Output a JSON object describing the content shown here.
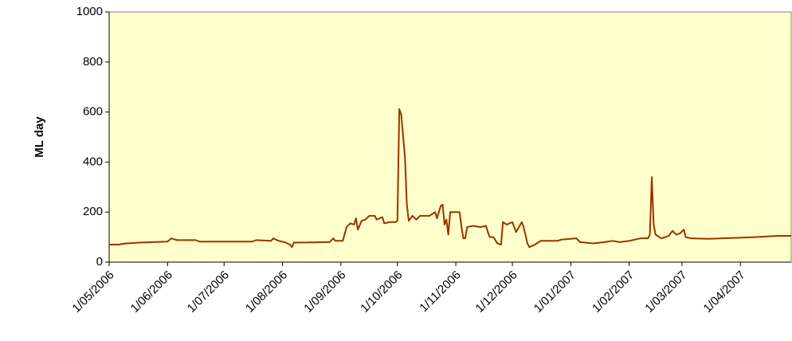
{
  "chart_data": {
    "type": "line",
    "y_label": "ML day",
    "ylim": [
      0,
      1000
    ],
    "yticks": [
      0,
      200,
      400,
      600,
      800,
      1000
    ],
    "xlim": [
      "1/05/2006",
      "28/04/2007"
    ],
    "xticks": [
      "1/05/2006",
      "1/06/2006",
      "1/07/2006",
      "1/08/2006",
      "1/09/2006",
      "1/10/2006",
      "1/11/2006",
      "1/12/2006",
      "1/01/2007",
      "1/02/2007",
      "1/03/2007",
      "1/04/2007"
    ],
    "plot_background": "#ffffcc",
    "x": [
      "1/05/2006",
      "6/05/2006",
      "9/05/2006",
      "17/05/2006",
      "1/06/2006",
      "3/06/2006",
      "6/06/2006",
      "16/06/2006",
      "18/06/2006",
      "16/07/2006",
      "18/07/2006",
      "26/07/2006",
      "27/07/2006",
      "30/07/2006",
      "2/08/2006",
      "5/08/2006",
      "6/08/2006",
      "7/08/2006",
      "26/08/2006",
      "28/08/2006",
      "29/08/2006",
      "2/09/2006",
      "4/09/2006",
      "6/09/2006",
      "8/09/2006",
      "9/09/2006",
      "10/09/2006",
      "12/09/2006",
      "14/09/2006",
      "16/09/2006",
      "19/09/2006",
      "20/09/2006",
      "23/09/2006",
      "24/09/2006",
      "27/09/2006",
      "30/09/2006",
      "1/10/2006",
      "2/10/2006",
      "3/10/2006",
      "5/10/2006",
      "6/10/2006",
      "7/10/2006",
      "9/10/2006",
      "11/10/2006",
      "13/10/2006",
      "18/10/2006",
      "21/10/2006",
      "22/10/2006",
      "24/10/2006",
      "25/10/2006",
      "26/10/2006",
      "27/10/2006",
      "28/10/2006",
      "29/10/2006",
      "3/11/2006",
      "4/11/2006",
      "5/11/2006",
      "6/11/2006",
      "7/11/2006",
      "10/11/2006",
      "14/11/2006",
      "17/11/2006",
      "18/11/2006",
      "19/11/2006",
      "21/11/2006",
      "23/11/2006",
      "25/11/2006",
      "26/11/2006",
      "28/11/2006",
      "1/12/2006",
      "3/12/2006",
      "6/12/2006",
      "7/12/2006",
      "9/12/2006",
      "10/12/2006",
      "13/12/2006",
      "16/12/2006",
      "25/12/2006",
      "27/12/2006",
      "4/01/2007",
      "6/01/2007",
      "13/01/2007",
      "19/01/2007",
      "23/01/2007",
      "27/01/2007",
      "1/02/2007",
      "7/02/2007",
      "11/02/2007",
      "12/02/2007",
      "13/02/2007",
      "14/02/2007",
      "15/02/2007",
      "18/02/2007",
      "22/02/2007",
      "24/02/2007",
      "26/02/2007",
      "28/02/2007",
      "2/03/2007",
      "3/03/2007",
      "6/03/2007",
      "15/03/2007",
      "9/04/2007",
      "21/04/2007",
      "28/04/2007"
    ],
    "series": [
      {
        "name": "ML day",
        "color": "#993300",
        "values": [
          70,
          70,
          74,
          78,
          82,
          95,
          88,
          88,
          82,
          82,
          88,
          85,
          95,
          85,
          80,
          70,
          60,
          78,
          80,
          95,
          85,
          85,
          140,
          155,
          150,
          175,
          130,
          165,
          170,
          185,
          185,
          170,
          180,
          155,
          160,
          160,
          165,
          612,
          590,
          420,
          230,
          165,
          185,
          170,
          185,
          185,
          200,
          175,
          225,
          230,
          150,
          170,
          110,
          200,
          200,
          140,
          95,
          95,
          140,
          145,
          140,
          145,
          120,
          100,
          100,
          75,
          70,
          160,
          150,
          160,
          120,
          160,
          140,
          75,
          60,
          70,
          85,
          85,
          90,
          95,
          80,
          75,
          80,
          85,
          80,
          85,
          95,
          95,
          110,
          340,
          150,
          110,
          95,
          105,
          125,
          110,
          115,
          130,
          100,
          95,
          93,
          100,
          105,
          105
        ]
      }
    ]
  }
}
